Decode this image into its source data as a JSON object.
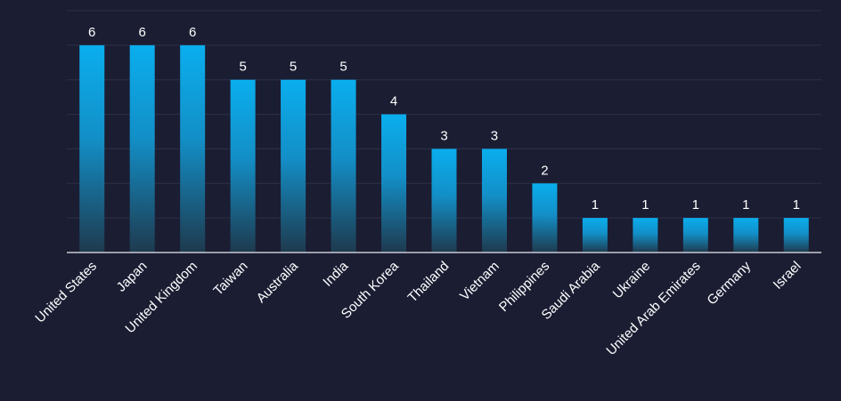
{
  "chart_data": {
    "type": "bar",
    "title": "",
    "xlabel": "",
    "ylabel": "",
    "categories": [
      "United States",
      "Japan",
      "United Kingdom",
      "Taiwan",
      "Australia",
      "India",
      "South Korea",
      "Thailand",
      "Vietnam",
      "Philippines",
      "Saudi Arabia",
      "Ukraine",
      "United Arab Emirates",
      "Germany",
      "Israel"
    ],
    "values": [
      6,
      6,
      6,
      5,
      5,
      5,
      4,
      3,
      3,
      2,
      1,
      1,
      1,
      1,
      1
    ],
    "ylim": [
      0,
      7
    ],
    "grid": true,
    "data_labels": true,
    "colors": {
      "background": "#1b1d33",
      "bar_top": "#0aaeee",
      "bar_bottom": "#1e3a4e",
      "grid": "#2c3048",
      "axis": "#c8cad2",
      "text": "#ffffff"
    }
  }
}
